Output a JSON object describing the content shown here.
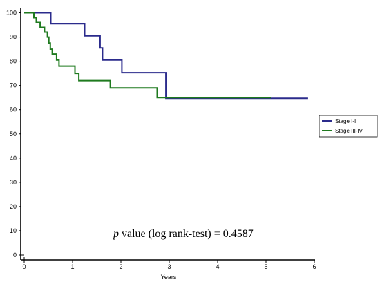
{
  "chart_data": {
    "type": "line",
    "step": true,
    "title": "",
    "xlabel": "Years",
    "ylabel": "",
    "xlim": [
      0,
      6
    ],
    "ylim": [
      0,
      100
    ],
    "xticks": [
      "0",
      "1",
      "2",
      "3",
      "4",
      "5",
      "6"
    ],
    "yticks": [
      "0",
      "10",
      "20",
      "30",
      "40",
      "50",
      "60",
      "70",
      "80",
      "90",
      "100"
    ],
    "grid": false,
    "legend_position": "right",
    "annotation": {
      "italic": "p",
      "rest": " value (log rank-test) = 0.4587"
    },
    "series": [
      {
        "name": "Stage I-II",
        "color": "#2b2b8c",
        "points": [
          [
            0,
            100
          ],
          [
            0.55,
            100
          ],
          [
            0.55,
            95.5
          ],
          [
            1.25,
            95.5
          ],
          [
            1.25,
            90.5
          ],
          [
            1.57,
            90.5
          ],
          [
            1.57,
            85.5
          ],
          [
            1.62,
            85.5
          ],
          [
            1.62,
            80.5
          ],
          [
            2.02,
            80.5
          ],
          [
            2.02,
            75.3
          ],
          [
            2.93,
            75.3
          ],
          [
            2.93,
            64.7
          ],
          [
            5.87,
            64.7
          ]
        ]
      },
      {
        "name": "Stage III-IV",
        "color": "#1f7a1f",
        "points": [
          [
            0,
            100
          ],
          [
            0.2,
            100
          ],
          [
            0.2,
            98
          ],
          [
            0.25,
            98
          ],
          [
            0.25,
            96
          ],
          [
            0.33,
            96
          ],
          [
            0.33,
            94
          ],
          [
            0.42,
            94
          ],
          [
            0.42,
            92
          ],
          [
            0.48,
            92
          ],
          [
            0.48,
            90
          ],
          [
            0.51,
            90
          ],
          [
            0.51,
            87.5
          ],
          [
            0.54,
            87.5
          ],
          [
            0.54,
            85
          ],
          [
            0.58,
            85
          ],
          [
            0.58,
            83
          ],
          [
            0.67,
            83
          ],
          [
            0.67,
            80.5
          ],
          [
            0.72,
            80.5
          ],
          [
            0.72,
            78
          ],
          [
            1.05,
            78
          ],
          [
            1.05,
            75
          ],
          [
            1.13,
            75
          ],
          [
            1.13,
            72
          ],
          [
            1.78,
            72
          ],
          [
            1.78,
            69
          ],
          [
            2.75,
            69
          ],
          [
            2.75,
            65
          ],
          [
            5.1,
            65
          ]
        ]
      }
    ]
  }
}
